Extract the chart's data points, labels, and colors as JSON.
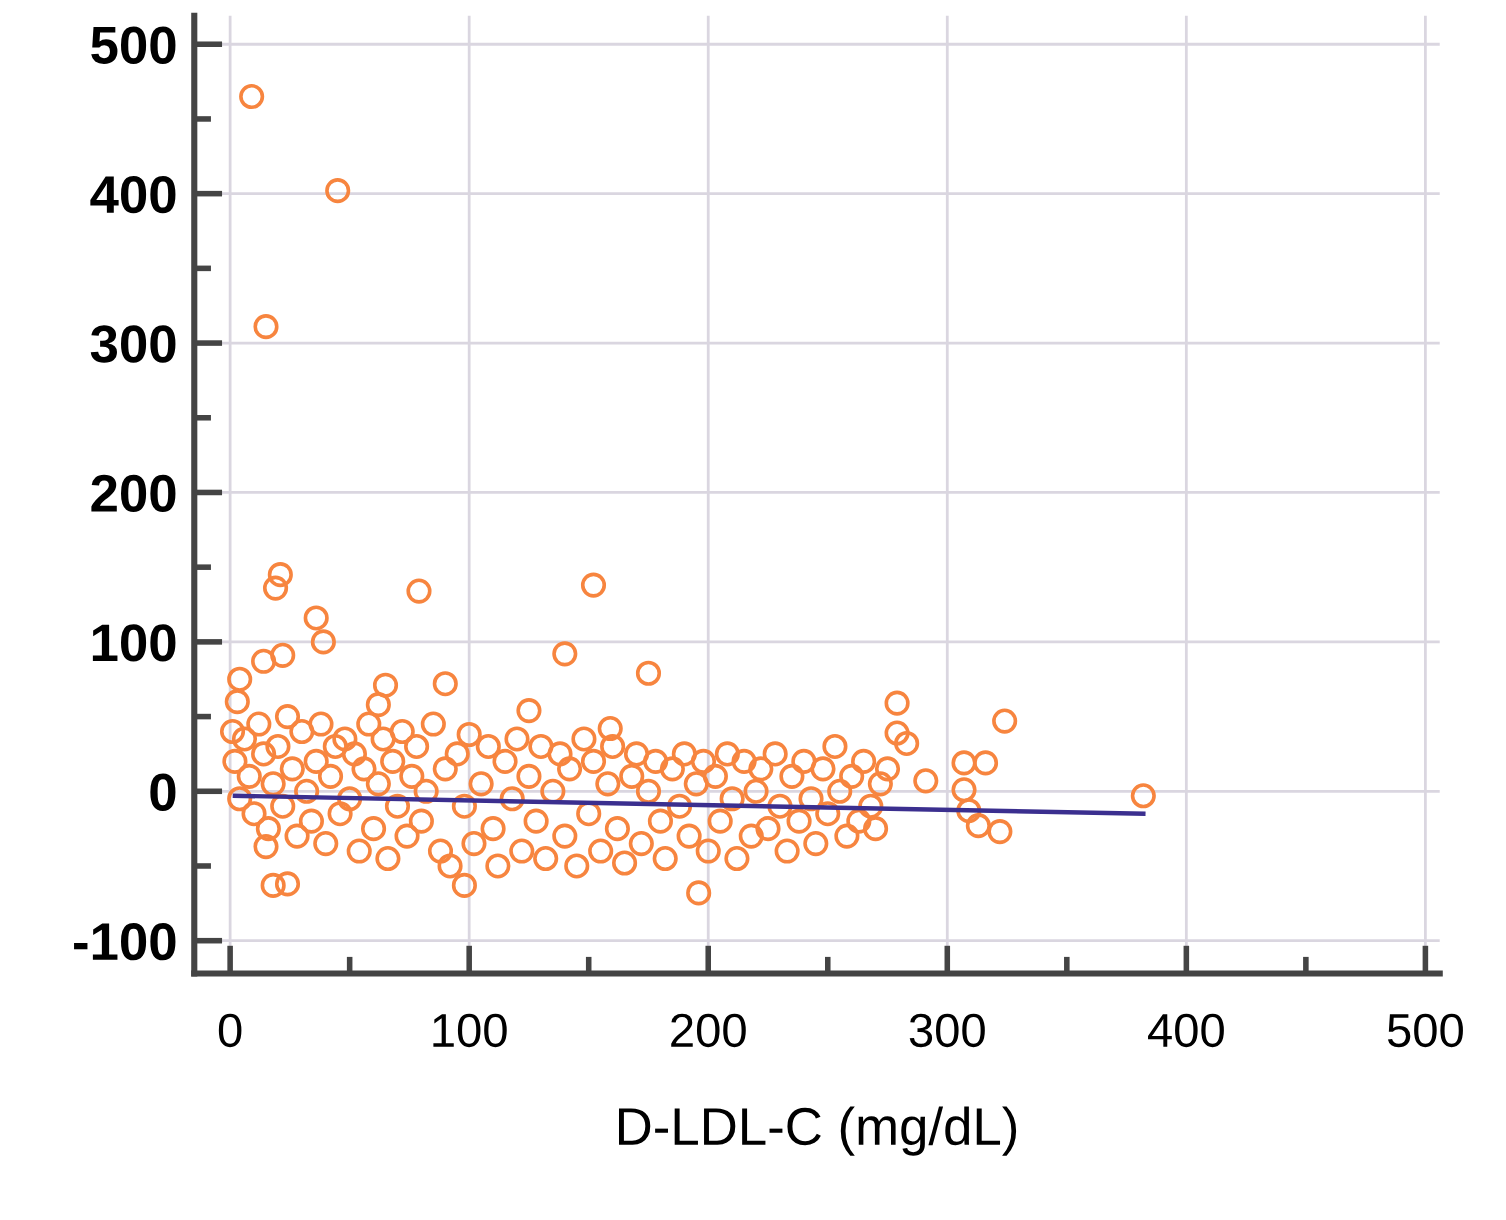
{
  "chart_data": {
    "type": "scatter",
    "xlabel": "D-LDL-C (mg/dL)",
    "xlim": [
      -15,
      506
    ],
    "ylim": [
      -122,
      519
    ],
    "xticks": [
      0,
      {
        "value": 50,
        "label": null
      },
      100,
      {
        "value": 150,
        "label": null
      },
      200,
      {
        "value": 250,
        "label": null
      },
      300,
      {
        "value": 350,
        "label": null
      },
      400,
      {
        "value": 450,
        "label": null
      },
      500
    ],
    "yticks": [
      -100,
      {
        "value": -50,
        "label": null
      },
      0,
      {
        "value": 50,
        "label": null
      },
      100,
      {
        "value": 150,
        "label": null
      },
      200,
      {
        "value": 250,
        "label": null
      },
      300,
      {
        "value": 350,
        "label": null
      },
      400,
      {
        "value": 450,
        "label": null
      },
      500
    ],
    "grid": true,
    "marker": "circle",
    "series": [
      {
        "color": "#f7853f",
        "x": [
          9,
          45,
          15,
          21,
          19,
          79,
          152,
          36,
          39,
          14,
          22,
          140,
          175,
          4,
          3,
          65,
          62,
          90,
          125,
          159,
          1,
          15,
          18,
          24,
          98,
          196,
          279,
          324,
          279,
          283,
          291,
          307,
          316,
          307,
          313,
          322,
          382,
          309,
          2,
          4,
          6,
          8,
          10,
          12,
          14,
          16,
          18,
          20,
          22,
          24,
          26,
          28,
          30,
          32,
          34,
          36,
          38,
          40,
          42,
          44,
          46,
          48,
          50,
          52,
          54,
          56,
          58,
          60,
          62,
          64,
          66,
          68,
          70,
          72,
          74,
          76,
          78,
          80,
          82,
          85,
          88,
          90,
          92,
          95,
          98,
          100,
          102,
          105,
          108,
          110,
          112,
          115,
          118,
          120,
          122,
          125,
          128,
          130,
          132,
          135,
          138,
          140,
          142,
          145,
          148,
          150,
          152,
          155,
          158,
          160,
          162,
          165,
          168,
          170,
          172,
          175,
          178,
          180,
          182,
          185,
          188,
          190,
          192,
          195,
          198,
          200,
          203,
          205,
          208,
          210,
          212,
          215,
          218,
          220,
          222,
          225,
          228,
          230,
          233,
          235,
          238,
          240,
          243,
          245,
          248,
          250,
          253,
          255,
          258,
          260,
          263,
          265,
          268,
          270,
          272,
          275
        ],
        "values": [
          465,
          402,
          311,
          145,
          136,
          134,
          138,
          116,
          100,
          87,
          91,
          92,
          79,
          75,
          60,
          71,
          58,
          72,
          54,
          42,
          40,
          -37,
          -63,
          -62,
          -63,
          -68,
          59,
          47,
          39,
          32,
          7,
          19,
          19,
          1,
          -23,
          -27,
          -3,
          -13,
          20,
          -5,
          35,
          10,
          -15,
          45,
          25,
          -25,
          5,
          30,
          -10,
          50,
          15,
          -30,
          40,
          0,
          -20,
          20,
          45,
          -35,
          10,
          30,
          -15,
          35,
          -5,
          25,
          -40,
          15,
          45,
          -25,
          5,
          35,
          -45,
          20,
          -10,
          40,
          -30,
          10,
          30,
          -20,
          0,
          45,
          -40,
          15,
          -50,
          25,
          -10,
          38,
          -35,
          5,
          30,
          -25,
          -50,
          20,
          -5,
          35,
          -40,
          10,
          -20,
          30,
          -45,
          0,
          25,
          -30,
          15,
          -50,
          35,
          -15,
          20,
          -40,
          5,
          30,
          -25,
          -48,
          10,
          25,
          -35,
          0,
          20,
          -20,
          -45,
          15,
          -10,
          25,
          -30,
          5,
          20,
          -40,
          10,
          -20,
          25,
          -5,
          -45,
          20,
          -30,
          0,
          15,
          -25,
          25,
          -10,
          -40,
          10,
          -20,
          20,
          -5,
          -35,
          15,
          -15,
          30,
          0,
          -30,
          10,
          -20,
          20,
          -10,
          -25,
          5,
          15
        ]
      },
      {
        "type": "line",
        "color": "#3b2f8f",
        "line_style": "solid",
        "marker": "none",
        "x": [
          2,
          382
        ],
        "values": [
          -3,
          -15
        ]
      }
    ]
  }
}
